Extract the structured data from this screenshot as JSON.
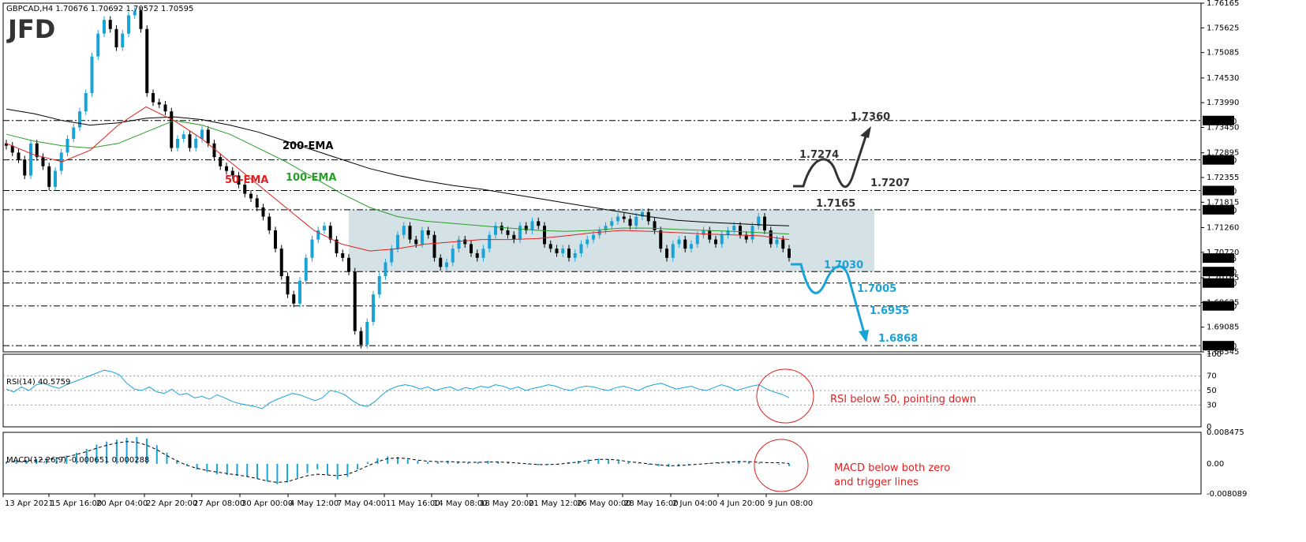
{
  "chart_data": [
    {
      "type": "line",
      "title": "GBPCAD,H4  1.70676 1.70692 1.70572 1.70595",
      "logo": "JFD",
      "x_labels": [
        "13 Apr 2021",
        "15 Apr 16:00",
        "20 Apr 04:00",
        "22 Apr 20:00",
        "27 Apr 08:00",
        "30 Apr 00:00",
        "4 May 12:00",
        "7 May 04:00",
        "11 May 16:00",
        "14 May 08:00",
        "18 May 20:00",
        "21 May 12:00",
        "26 May 00:00",
        "28 May 16:00",
        "2 Jun 04:00",
        "4 Jun 20:00",
        "9 Jun 08:00"
      ],
      "y_ticks": [
        "1.76165",
        "1.75625",
        "1.75085",
        "1.74530",
        "1.73990",
        "1.73450",
        "1.72895",
        "1.72355",
        "1.71815",
        "1.71260",
        "1.70720",
        "1.70165",
        "1.69625",
        "1.69085",
        "1.68545"
      ],
      "ylim": [
        1.68545,
        1.76165
      ],
      "price_series_close": [
        1.7305,
        1.729,
        1.7275,
        1.724,
        1.731,
        1.728,
        1.726,
        1.7215,
        1.725,
        1.729,
        1.732,
        1.7345,
        1.738,
        1.742,
        1.75,
        1.755,
        1.758,
        1.756,
        1.752,
        1.755,
        1.759,
        1.76,
        1.756,
        1.742,
        1.74,
        1.7395,
        1.738,
        1.73,
        1.732,
        1.733,
        1.73,
        1.732,
        1.734,
        1.731,
        1.728,
        1.726,
        1.725,
        1.724,
        1.722,
        1.72,
        1.719,
        1.717,
        1.715,
        1.712,
        1.708,
        1.702,
        1.698,
        1.696,
        1.701,
        1.706,
        1.71,
        1.712,
        1.713,
        1.71,
        1.707,
        1.706,
        1.703,
        1.69,
        1.687,
        1.692,
        1.698,
        1.702,
        1.705,
        1.708,
        1.711,
        1.713,
        1.71,
        1.709,
        1.712,
        1.711,
        1.706,
        1.704,
        1.705,
        1.708,
        1.71,
        1.709,
        1.707,
        1.706,
        1.708,
        1.711,
        1.713,
        1.712,
        1.711,
        1.71,
        1.713,
        1.712,
        1.714,
        1.713,
        1.709,
        1.708,
        1.707,
        1.708,
        1.706,
        1.707,
        1.709,
        1.71,
        1.711,
        1.712,
        1.713,
        1.714,
        1.715,
        1.7145,
        1.713,
        1.715,
        1.716,
        1.714,
        1.712,
        1.708,
        1.706,
        1.709,
        1.71,
        1.708,
        1.709,
        1.711,
        1.712,
        1.71,
        1.709,
        1.711,
        1.712,
        1.713,
        1.711,
        1.71,
        1.713,
        1.715,
        1.712,
        1.709,
        1.71,
        1.708,
        1.706
      ],
      "ema_series": [
        {
          "name": "200-EMA",
          "color": "#000000",
          "values": [
            1.7385,
            1.7375,
            1.736,
            1.735,
            1.7355,
            1.7365,
            1.7368,
            1.7362,
            1.735,
            1.7335,
            1.7315,
            1.7295,
            1.7275,
            1.7255,
            1.724,
            1.7228,
            1.7218,
            1.721,
            1.72,
            1.719,
            1.718,
            1.717,
            1.716,
            1.715,
            1.7142,
            1.7138,
            1.7135,
            1.7132,
            1.713
          ]
        },
        {
          "name": "100-EMA",
          "color": "#2a9d2a",
          "values": [
            1.733,
            1.7315,
            1.7305,
            1.73,
            1.731,
            1.7335,
            1.736,
            1.735,
            1.733,
            1.73,
            1.727,
            1.7235,
            1.72,
            1.717,
            1.715,
            1.714,
            1.7135,
            1.713,
            1.7125,
            1.712,
            1.7118,
            1.712,
            1.7125,
            1.7125,
            1.7122,
            1.712,
            1.7118,
            1.7115,
            1.7112
          ]
        },
        {
          "name": "50-EMA",
          "color": "#e02020",
          "values": [
            1.731,
            1.7285,
            1.727,
            1.7295,
            1.735,
            1.739,
            1.736,
            1.732,
            1.727,
            1.722,
            1.717,
            1.712,
            1.709,
            1.7075,
            1.708,
            1.709,
            1.7095,
            1.71,
            1.71,
            1.7102,
            1.7108,
            1.7115,
            1.712,
            1.7118,
            1.7115,
            1.7112,
            1.711,
            1.7108,
            1.71
          ]
        }
      ],
      "range_box": {
        "low": 1.703,
        "high": 1.7165
      },
      "levels": [
        {
          "value": 1.736,
          "tag": "1.73600"
        },
        {
          "value": 1.7274,
          "tag": "1.72740"
        },
        {
          "value": 1.7207,
          "tag": "1.72070"
        },
        {
          "value": 1.7165,
          "tag": "1.71650"
        },
        {
          "value": 1.703,
          "tag": "1.70300"
        },
        {
          "value": 1.7005,
          "tag": "1.70050"
        },
        {
          "value": 1.6955,
          "tag": "1.69550"
        },
        {
          "value": 1.6868,
          "tag": "1.68680"
        }
      ],
      "current_price_tag": "1.70595",
      "current_price": 1.70595,
      "level_labels": {
        "up": [
          "1.7360",
          "1.7274",
          "1.7207",
          "1.7165"
        ],
        "down": [
          "1.7030",
          "1.7005",
          "1.6955",
          "1.6868"
        ]
      },
      "ema_labels": {
        "ema200": "200-EMA",
        "ema100": "100-EMA",
        "ema50": "50-EMA"
      },
      "colors": {
        "bull": "#1aa3d6",
        "bear": "#000000",
        "range": "#b7cdd3",
        "down_arrow": "#1aa3d6",
        "up_arrow": "#333333",
        "annotation": "#e02020"
      }
    },
    {
      "type": "line",
      "title": "RSI(14) 40.5759",
      "y_ticks": [
        "100",
        "70",
        "50",
        "30",
        "0"
      ],
      "ylim": [
        0,
        100
      ],
      "levels": [
        70,
        50,
        30
      ],
      "values": [
        52,
        48,
        55,
        50,
        58,
        60,
        56,
        53,
        58,
        62,
        66,
        70,
        74,
        78,
        76,
        72,
        60,
        52,
        50,
        55,
        48,
        46,
        52,
        44,
        46,
        40,
        42,
        38,
        44,
        40,
        35,
        32,
        30,
        28,
        25,
        33,
        38,
        42,
        46,
        44,
        40,
        36,
        40,
        50,
        48,
        44,
        36,
        30,
        28,
        35,
        45,
        52,
        56,
        58,
        56,
        52,
        55,
        50,
        53,
        55,
        50,
        54,
        52,
        56,
        54,
        58,
        56,
        52,
        55,
        50,
        53,
        55,
        58,
        56,
        52,
        50,
        54,
        56,
        55,
        52,
        50,
        54,
        56,
        53,
        50,
        55,
        58,
        60,
        56,
        52,
        54,
        56,
        52,
        50,
        54,
        58,
        55,
        50,
        53,
        56,
        58,
        52,
        48,
        45,
        40
      ],
      "annotation": "RSI below 50, pointing down"
    },
    {
      "type": "bar",
      "title": "MACD(12,26,9) -0.000651 0.000288",
      "y_ticks": [
        "0.008475",
        "0.00",
        "-0.008089"
      ],
      "ylim": [
        -0.008089,
        0.008475
      ],
      "histogram": [
        0.0005,
        0.0008,
        0.001,
        0.0012,
        0.0015,
        0.0018,
        0.0022,
        0.003,
        0.004,
        0.0052,
        0.006,
        0.0065,
        0.007,
        0.0072,
        0.0068,
        0.005,
        0.003,
        0.001,
        -0.0005,
        -0.0015,
        -0.0022,
        -0.0028,
        -0.003,
        -0.0032,
        -0.0035,
        -0.004,
        -0.0048,
        -0.0055,
        -0.005,
        -0.0038,
        -0.0025,
        -0.0015,
        -0.003,
        -0.0042,
        -0.0035,
        -0.0015,
        0.0005,
        0.0015,
        0.002,
        0.0018,
        0.0012,
        0.0008,
        0.0005,
        0.0006,
        0.0008,
        0.0005,
        0.0003,
        0.0005,
        0.0008,
        0.0006,
        0.0003,
        0.0001,
        -0.0002,
        -0.0004,
        -0.0002,
        0.0001,
        0.0004,
        0.0008,
        0.0012,
        0.0014,
        0.0012,
        0.0008,
        0.0004,
        0.0001,
        -0.0003,
        -0.0006,
        -0.0008,
        -0.0006,
        -0.0003,
        0.0,
        0.0002,
        0.0004,
        0.0006,
        0.0008,
        0.0006,
        0.0003,
        0.0,
        -0.0003,
        -0.0006
      ],
      "signal": [
        0.0005,
        0.0006,
        0.0008,
        0.001,
        0.0012,
        0.0015,
        0.0019,
        0.0025,
        0.0033,
        0.0042,
        0.005,
        0.0056,
        0.006,
        0.0058,
        0.005,
        0.0038,
        0.0022,
        0.0008,
        -0.0004,
        -0.0012,
        -0.0018,
        -0.0022,
        -0.0026,
        -0.003,
        -0.0034,
        -0.004,
        -0.0046,
        -0.005,
        -0.0048,
        -0.004,
        -0.0032,
        -0.0028,
        -0.003,
        -0.0032,
        -0.0028,
        -0.0018,
        -0.0006,
        0.0006,
        0.0014,
        0.0016,
        0.0014,
        0.001,
        0.0007,
        0.0006,
        0.0006,
        0.0005,
        0.0004,
        0.0004,
        0.0005,
        0.0005,
        0.0004,
        0.0002,
        0.0,
        -0.0002,
        -0.0002,
        -0.0001,
        0.0002,
        0.0005,
        0.0009,
        0.0012,
        0.0012,
        0.001,
        0.0006,
        0.0003,
        0.0,
        -0.0003,
        -0.0005,
        -0.0005,
        -0.0003,
        -0.0001,
        0.0001,
        0.0003,
        0.0005,
        0.0006,
        0.0006,
        0.0004,
        0.0003,
        0.0003,
        0.0001
      ],
      "annotation_lines": [
        "MACD below both zero",
        "and trigger lines"
      ]
    }
  ]
}
